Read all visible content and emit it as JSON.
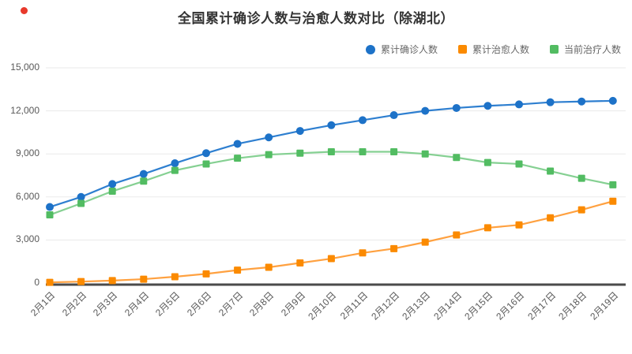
{
  "page": {
    "record_dot_color": "#E8392B",
    "background": "#FFFFFF"
  },
  "chart_data": {
    "type": "line",
    "title": "全国累计确诊人数与治愈人数对比（除湖北）",
    "legend_position": "top-right",
    "grid": true,
    "xlabel": "",
    "ylabel": "",
    "ylim": [
      0,
      15000
    ],
    "x_label_rotation_deg": -45,
    "axis_line_color": "#4A4A4A",
    "gridline_color": "#EAEAEA",
    "tick_text_color": "#595959",
    "yticks": [
      {
        "value": 15000,
        "label": "15,000"
      },
      {
        "value": 12000,
        "label": "12,000"
      },
      {
        "value": 9000,
        "label": "9,000"
      },
      {
        "value": 6000,
        "label": "6,000"
      },
      {
        "value": 3000,
        "label": "3,000"
      },
      {
        "value": 0,
        "label": "0"
      }
    ],
    "categories": [
      "2月1日",
      "2月2日",
      "2月3日",
      "2月4日",
      "2月5日",
      "2月6日",
      "2月7日",
      "2月8日",
      "2月9日",
      "2月10日",
      "2月11日",
      "2月12日",
      "2月13日",
      "2月14日",
      "2月15日",
      "2月16日",
      "2月17日",
      "2月18日",
      "2月19日"
    ],
    "series": [
      {
        "name": "累计确诊人数",
        "marker": "circle",
        "color": "#1D72C8",
        "line_color": "#2E7FD0",
        "values": [
          5300,
          6000,
          6900,
          7600,
          8350,
          9050,
          9700,
          10150,
          10600,
          11000,
          11350,
          11700,
          12000,
          12200,
          12350,
          12450,
          12600,
          12650,
          12700
        ]
      },
      {
        "name": "累计治愈人数",
        "marker": "square",
        "color": "#FB8A00",
        "line_color": "#FFA140",
        "values": [
          50,
          100,
          170,
          270,
          440,
          640,
          900,
          1100,
          1400,
          1700,
          2100,
          2400,
          2850,
          3350,
          3850,
          4050,
          4550,
          5100,
          5700
        ]
      },
      {
        "name": "当前治疗人数",
        "marker": "square",
        "color": "#52BC62",
        "line_color": "#85D092",
        "values": [
          4750,
          5550,
          6400,
          7100,
          7850,
          8300,
          8700,
          8950,
          9050,
          9150,
          9150,
          9150,
          9000,
          8750,
          8400,
          8300,
          7800,
          7300,
          6850
        ]
      }
    ]
  }
}
